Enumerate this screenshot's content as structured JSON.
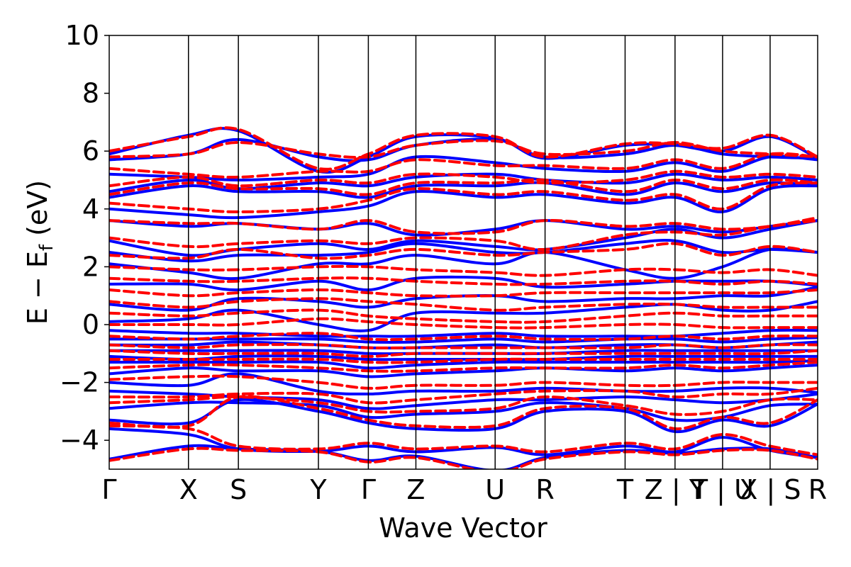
{
  "chart_data": {
    "type": "line",
    "title": "",
    "xlabel": "Wave Vector",
    "ylabel": "E − E",
    "ylabel_sub": "f",
    "ylabel_unit": " (eV)",
    "ylim": [
      -5,
      10
    ],
    "yticks": [
      -4,
      -2,
      0,
      2,
      4,
      6,
      8,
      10
    ],
    "ytick_labels": [
      "−4",
      "−2",
      "0",
      "2",
      "4",
      "6",
      "8",
      "10"
    ],
    "grid": false,
    "path_segments": [
      {
        "label": "Γ",
        "x": 0.0
      },
      {
        "label": "X",
        "x": 1.0
      },
      {
        "label": "S",
        "x": 1.63
      },
      {
        "label": "Y",
        "x": 2.64
      },
      {
        "label": "Γ",
        "x": 3.27
      },
      {
        "label": "Z",
        "x": 3.87
      },
      {
        "label": "U",
        "x": 4.87
      },
      {
        "label": "R",
        "x": 5.5
      },
      {
        "label": "T",
        "x": 6.51
      },
      {
        "label": "Z | Y",
        "x": 7.14
      },
      {
        "label": "T | U",
        "x": 7.74
      },
      {
        "label": "X | S",
        "x": 8.34
      },
      {
        "label": "R",
        "x": 8.94
      }
    ],
    "xlim": [
      0,
      8.94
    ],
    "series": [
      {
        "style": "solid",
        "color": "#0000ff",
        "bands": [
          [
            -4.65,
            -4.2,
            -4.3,
            -4.38,
            -4.7,
            -4.55,
            -5.05,
            -4.6,
            -4.35,
            -4.45,
            -4.3,
            -4.3,
            -4.6
          ],
          [
            -3.6,
            -3.8,
            -4.3,
            -4.38,
            -4.2,
            -4.4,
            -4.25,
            -4.5,
            -4.2,
            -4.4,
            -3.9,
            -4.35,
            -4.6
          ],
          [
            -3.3,
            -3.4,
            -2.6,
            -3.0,
            -3.4,
            -3.6,
            -3.6,
            -3.0,
            -3.0,
            -3.7,
            -3.3,
            -3.5,
            -2.75
          ],
          [
            -2.9,
            -2.7,
            -2.7,
            -2.8,
            -3.2,
            -3.1,
            -3.0,
            -2.7,
            -2.9,
            -3.3,
            -3.2,
            -2.8,
            -2.75
          ],
          [
            -2.3,
            -2.4,
            -2.5,
            -2.6,
            -2.9,
            -2.8,
            -2.6,
            -2.6,
            -2.5,
            -2.6,
            -2.7,
            -2.6,
            -2.4
          ],
          [
            -2.0,
            -2.1,
            -1.7,
            -2.3,
            -2.4,
            -2.3,
            -2.3,
            -2.2,
            -2.3,
            -2.3,
            -2.2,
            -2.2,
            -2.35
          ],
          [
            -1.7,
            -1.5,
            -1.6,
            -1.6,
            -1.8,
            -1.7,
            -1.6,
            -1.5,
            -1.6,
            -1.5,
            -1.6,
            -1.5,
            -1.4
          ],
          [
            -1.3,
            -1.3,
            -1.3,
            -1.3,
            -1.5,
            -1.4,
            -1.3,
            -1.3,
            -1.3,
            -1.3,
            -1.3,
            -1.3,
            -1.25
          ],
          [
            -1.1,
            -1.2,
            -1.1,
            -1.1,
            -1.2,
            -1.2,
            -1.2,
            -1.2,
            -1.1,
            -1.1,
            -1.1,
            -1.1,
            -1.1
          ],
          [
            -0.9,
            -0.9,
            -0.9,
            -0.9,
            -1.0,
            -1.0,
            -1.0,
            -1.0,
            -0.9,
            -0.9,
            -0.9,
            -0.9,
            -0.9
          ],
          [
            -0.7,
            -0.7,
            -0.6,
            -0.7,
            -0.8,
            -0.8,
            -0.7,
            -0.8,
            -0.7,
            -0.7,
            -0.8,
            -0.7,
            -0.6
          ],
          [
            -0.5,
            -0.5,
            -0.5,
            -0.5,
            -0.6,
            -0.6,
            -0.5,
            -0.6,
            -0.5,
            -0.5,
            -0.6,
            -0.5,
            -0.45
          ],
          [
            -0.2,
            -0.3,
            -0.3,
            -0.4,
            -0.4,
            -0.4,
            -0.3,
            -0.4,
            -0.4,
            -0.4,
            -0.3,
            -0.2,
            -0.2
          ],
          [
            0.1,
            0.2,
            0.5,
            0.0,
            -0.2,
            0.4,
            0.4,
            0.4,
            0.6,
            0.7,
            0.5,
            0.5,
            0.8
          ],
          [
            0.7,
            0.5,
            0.9,
            0.8,
            0.6,
            0.9,
            1.0,
            0.8,
            0.9,
            0.9,
            1.0,
            1.0,
            1.3
          ],
          [
            1.4,
            1.4,
            1.2,
            1.5,
            1.2,
            1.6,
            1.6,
            1.3,
            1.4,
            1.5,
            1.5,
            1.5,
            1.35
          ],
          [
            2.1,
            1.8,
            1.6,
            2.1,
            2.1,
            2.4,
            2.1,
            2.5,
            1.9,
            1.6,
            2.0,
            2.6,
            2.5
          ],
          [
            2.5,
            2.2,
            2.4,
            2.4,
            2.5,
            2.8,
            2.5,
            2.5,
            2.8,
            2.9,
            2.5,
            2.6,
            2.5
          ],
          [
            2.9,
            2.4,
            2.6,
            2.8,
            2.6,
            2.9,
            2.7,
            2.6,
            3.0,
            3.3,
            3.0,
            3.3,
            3.6
          ],
          [
            3.6,
            3.4,
            3.5,
            3.3,
            3.5,
            3.1,
            3.3,
            3.6,
            3.3,
            3.4,
            3.2,
            3.4,
            3.6
          ],
          [
            4.0,
            3.8,
            3.7,
            3.9,
            4.1,
            4.6,
            4.4,
            4.5,
            4.2,
            4.4,
            3.9,
            4.7,
            4.8
          ],
          [
            4.4,
            4.8,
            4.6,
            4.6,
            4.4,
            4.8,
            4.8,
            4.9,
            4.5,
            4.9,
            4.6,
            4.9,
            4.8
          ],
          [
            4.6,
            5.0,
            4.7,
            4.9,
            4.8,
            5.1,
            5.2,
            5.0,
            4.9,
            5.2,
            5.0,
            5.1,
            5.0
          ],
          [
            5.2,
            5.1,
            5.0,
            5.1,
            5.2,
            5.8,
            5.6,
            5.4,
            5.3,
            5.6,
            5.3,
            5.8,
            5.7
          ],
          [
            5.7,
            5.9,
            6.4,
            5.8,
            5.7,
            6.2,
            6.4,
            5.8,
            5.9,
            6.2,
            5.9,
            5.8,
            5.75
          ],
          [
            5.9,
            6.55,
            6.7,
            5.3,
            5.8,
            6.5,
            6.45,
            5.75,
            6.2,
            6.2,
            6.0,
            6.5,
            5.75
          ]
        ]
      },
      {
        "style": "dashed",
        "color": "#ff0000",
        "bands": [
          [
            -4.7,
            -4.3,
            -4.35,
            -4.4,
            -4.75,
            -4.6,
            -5.1,
            -4.65,
            -4.4,
            -4.5,
            -4.35,
            -4.35,
            -4.65
          ],
          [
            -3.5,
            -3.6,
            -4.2,
            -4.3,
            -4.1,
            -4.3,
            -4.2,
            -4.4,
            -4.1,
            -4.3,
            -3.8,
            -4.2,
            -4.5
          ],
          [
            -3.4,
            -3.5,
            -2.5,
            -2.9,
            -3.3,
            -3.5,
            -3.5,
            -2.9,
            -2.9,
            -3.6,
            -3.2,
            -3.4,
            -2.6
          ],
          [
            -2.7,
            -2.6,
            -2.5,
            -2.7,
            -3.0,
            -3.0,
            -2.9,
            -2.5,
            -2.8,
            -3.1,
            -3.0,
            -2.6,
            -2.6
          ],
          [
            -2.5,
            -2.5,
            -2.4,
            -2.4,
            -2.7,
            -2.6,
            -2.4,
            -2.3,
            -2.3,
            -2.5,
            -2.4,
            -2.4,
            -2.2
          ],
          [
            -1.9,
            -1.8,
            -1.8,
            -2.0,
            -2.2,
            -2.1,
            -2.1,
            -2.0,
            -2.1,
            -2.1,
            -2.0,
            -2.0,
            -2.0
          ],
          [
            -1.5,
            -1.4,
            -1.4,
            -1.5,
            -1.6,
            -1.6,
            -1.5,
            -1.5,
            -1.5,
            -1.4,
            -1.5,
            -1.4,
            -1.3
          ],
          [
            -1.2,
            -1.2,
            -1.2,
            -1.2,
            -1.3,
            -1.3,
            -1.2,
            -1.2,
            -1.2,
            -1.2,
            -1.2,
            -1.2,
            -1.2
          ],
          [
            -0.9,
            -1.0,
            -1.0,
            -1.0,
            -1.1,
            -1.0,
            -1.0,
            -1.0,
            -1.0,
            -1.0,
            -1.0,
            -1.0,
            -0.9
          ],
          [
            -0.7,
            -0.8,
            -0.7,
            -0.7,
            -0.8,
            -0.8,
            -0.8,
            -0.8,
            -0.8,
            -0.7,
            -0.8,
            -0.7,
            -0.7
          ],
          [
            -0.4,
            -0.5,
            -0.4,
            -0.3,
            -0.5,
            -0.5,
            -0.4,
            -0.5,
            -0.5,
            -0.4,
            -0.5,
            -0.4,
            -0.4
          ],
          [
            0.0,
            0.0,
            0.0,
            0.2,
            0.1,
            0.0,
            -0.1,
            -0.1,
            0.0,
            0.0,
            -0.1,
            -0.1,
            -0.1
          ],
          [
            0.4,
            0.3,
            0.4,
            0.5,
            0.3,
            0.2,
            0.1,
            0.1,
            0.3,
            0.4,
            0.3,
            0.3,
            0.3
          ],
          [
            0.8,
            0.6,
            0.8,
            0.9,
            0.8,
            0.7,
            0.5,
            0.6,
            0.7,
            0.7,
            0.6,
            0.6,
            0.6
          ],
          [
            1.2,
            1.0,
            1.1,
            1.2,
            1.1,
            1.0,
            1.0,
            1.1,
            1.1,
            1.1,
            1.1,
            1.1,
            1.2
          ],
          [
            1.6,
            1.5,
            1.5,
            1.6,
            1.6,
            1.5,
            1.4,
            1.4,
            1.5,
            1.5,
            1.4,
            1.5,
            1.4
          ],
          [
            2.0,
            1.9,
            1.9,
            2.0,
            2.0,
            1.9,
            1.8,
            1.7,
            1.9,
            1.9,
            1.8,
            1.9,
            1.7
          ],
          [
            2.4,
            2.3,
            2.6,
            2.3,
            2.4,
            2.6,
            2.4,
            2.5,
            2.6,
            2.8,
            2.4,
            2.7,
            2.5
          ],
          [
            3.0,
            2.7,
            2.8,
            2.9,
            2.8,
            3.0,
            2.9,
            2.6,
            3.1,
            3.2,
            3.1,
            3.4,
            3.6
          ],
          [
            3.6,
            3.5,
            3.5,
            3.3,
            3.6,
            3.2,
            3.2,
            3.6,
            3.4,
            3.5,
            3.3,
            3.4,
            3.7
          ],
          [
            4.2,
            4.0,
            3.9,
            4.0,
            4.3,
            4.7,
            4.5,
            4.6,
            4.3,
            4.5,
            4.0,
            4.8,
            4.9
          ],
          [
            4.5,
            4.9,
            4.7,
            4.7,
            4.5,
            4.9,
            4.9,
            5.0,
            4.6,
            5.0,
            4.7,
            5.0,
            4.9
          ],
          [
            4.8,
            5.1,
            4.8,
            5.0,
            4.9,
            5.2,
            5.1,
            4.9,
            5.0,
            5.3,
            5.1,
            5.2,
            5.1
          ],
          [
            5.4,
            5.2,
            5.1,
            5.3,
            5.3,
            5.7,
            5.5,
            5.5,
            5.4,
            5.7,
            5.4,
            5.9,
            5.8
          ],
          [
            5.8,
            5.9,
            6.3,
            5.9,
            5.8,
            6.2,
            6.35,
            5.9,
            6.0,
            6.3,
            6.0,
            5.9,
            5.8
          ],
          [
            6.0,
            6.5,
            6.75,
            5.4,
            5.9,
            6.55,
            6.5,
            5.8,
            6.25,
            6.25,
            6.1,
            6.55,
            5.8
          ]
        ]
      }
    ]
  }
}
